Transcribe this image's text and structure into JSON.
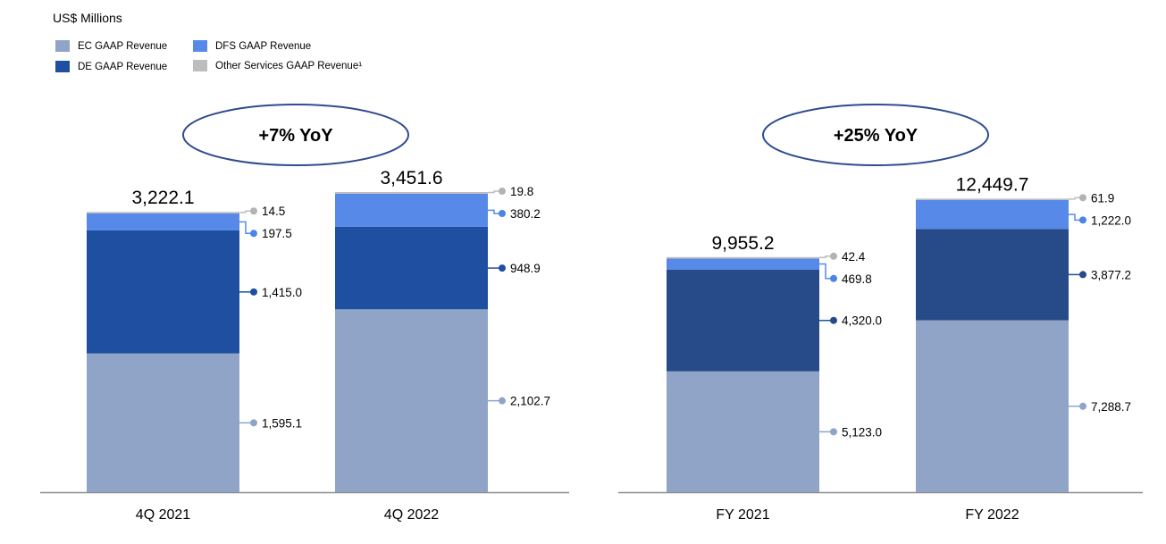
{
  "unit_label": "US$ Millions",
  "legend": [
    {
      "key": "ec",
      "label": "EC GAAP Revenue",
      "color": "#90a4c8"
    },
    {
      "key": "de",
      "label": "DE GAAP Revenue",
      "color": "#1f4fa0"
    },
    {
      "key": "dfs",
      "label": "DFS GAAP Revenue",
      "color": "#578ae8"
    },
    {
      "key": "other",
      "label": "Other Services GAAP Revenue¹",
      "color": "#bdbdbd"
    }
  ],
  "chart_data": [
    {
      "type": "bar",
      "stacked": true,
      "annotation": "+7% YoY",
      "categories": [
        "4Q 2021",
        "4Q 2022"
      ],
      "totals": [
        "3,222.1",
        "3,451.6"
      ],
      "series": [
        {
          "name": "EC GAAP Revenue",
          "values": [
            1595.1,
            2102.7
          ],
          "labels": [
            "1,595.1",
            "2,102.7"
          ],
          "color": "#90a4c8"
        },
        {
          "name": "DE GAAP Revenue",
          "values": [
            1415.0,
            948.9
          ],
          "labels": [
            "1,415.0",
            "948.9"
          ],
          "color": "#1f4fa0"
        },
        {
          "name": "DFS GAAP Revenue",
          "values": [
            197.5,
            380.2
          ],
          "labels": [
            "197.5",
            "380.2"
          ],
          "color": "#578ae8"
        },
        {
          "name": "Other Services GAAP Revenue¹",
          "values": [
            14.5,
            19.8
          ],
          "labels": [
            "14.5",
            "19.8"
          ],
          "color": "#bdbdbd"
        }
      ]
    },
    {
      "type": "bar",
      "stacked": true,
      "annotation": "+25% YoY",
      "categories": [
        "FY 2021",
        "FY 2022"
      ],
      "totals": [
        "9,955.2",
        "12,449.7"
      ],
      "series": [
        {
          "name": "EC GAAP Revenue",
          "values": [
            5123.0,
            7288.7
          ],
          "labels": [
            "5,123.0",
            "7,288.7"
          ],
          "color": "#90a4c8"
        },
        {
          "name": "DE GAAP Revenue",
          "values": [
            4320.0,
            3877.2
          ],
          "labels": [
            "4,320.0",
            "3,877.2"
          ],
          "color": "#274a89"
        },
        {
          "name": "DFS GAAP Revenue",
          "values": [
            469.8,
            1222.0
          ],
          "labels": [
            "469.8",
            "1,222.0"
          ],
          "color": "#578ae8"
        },
        {
          "name": "Other Services GAAP Revenue¹",
          "values": [
            42.4,
            61.9
          ],
          "labels": [
            "42.4",
            "61.9"
          ],
          "color": "#bdbdbd"
        }
      ]
    }
  ]
}
